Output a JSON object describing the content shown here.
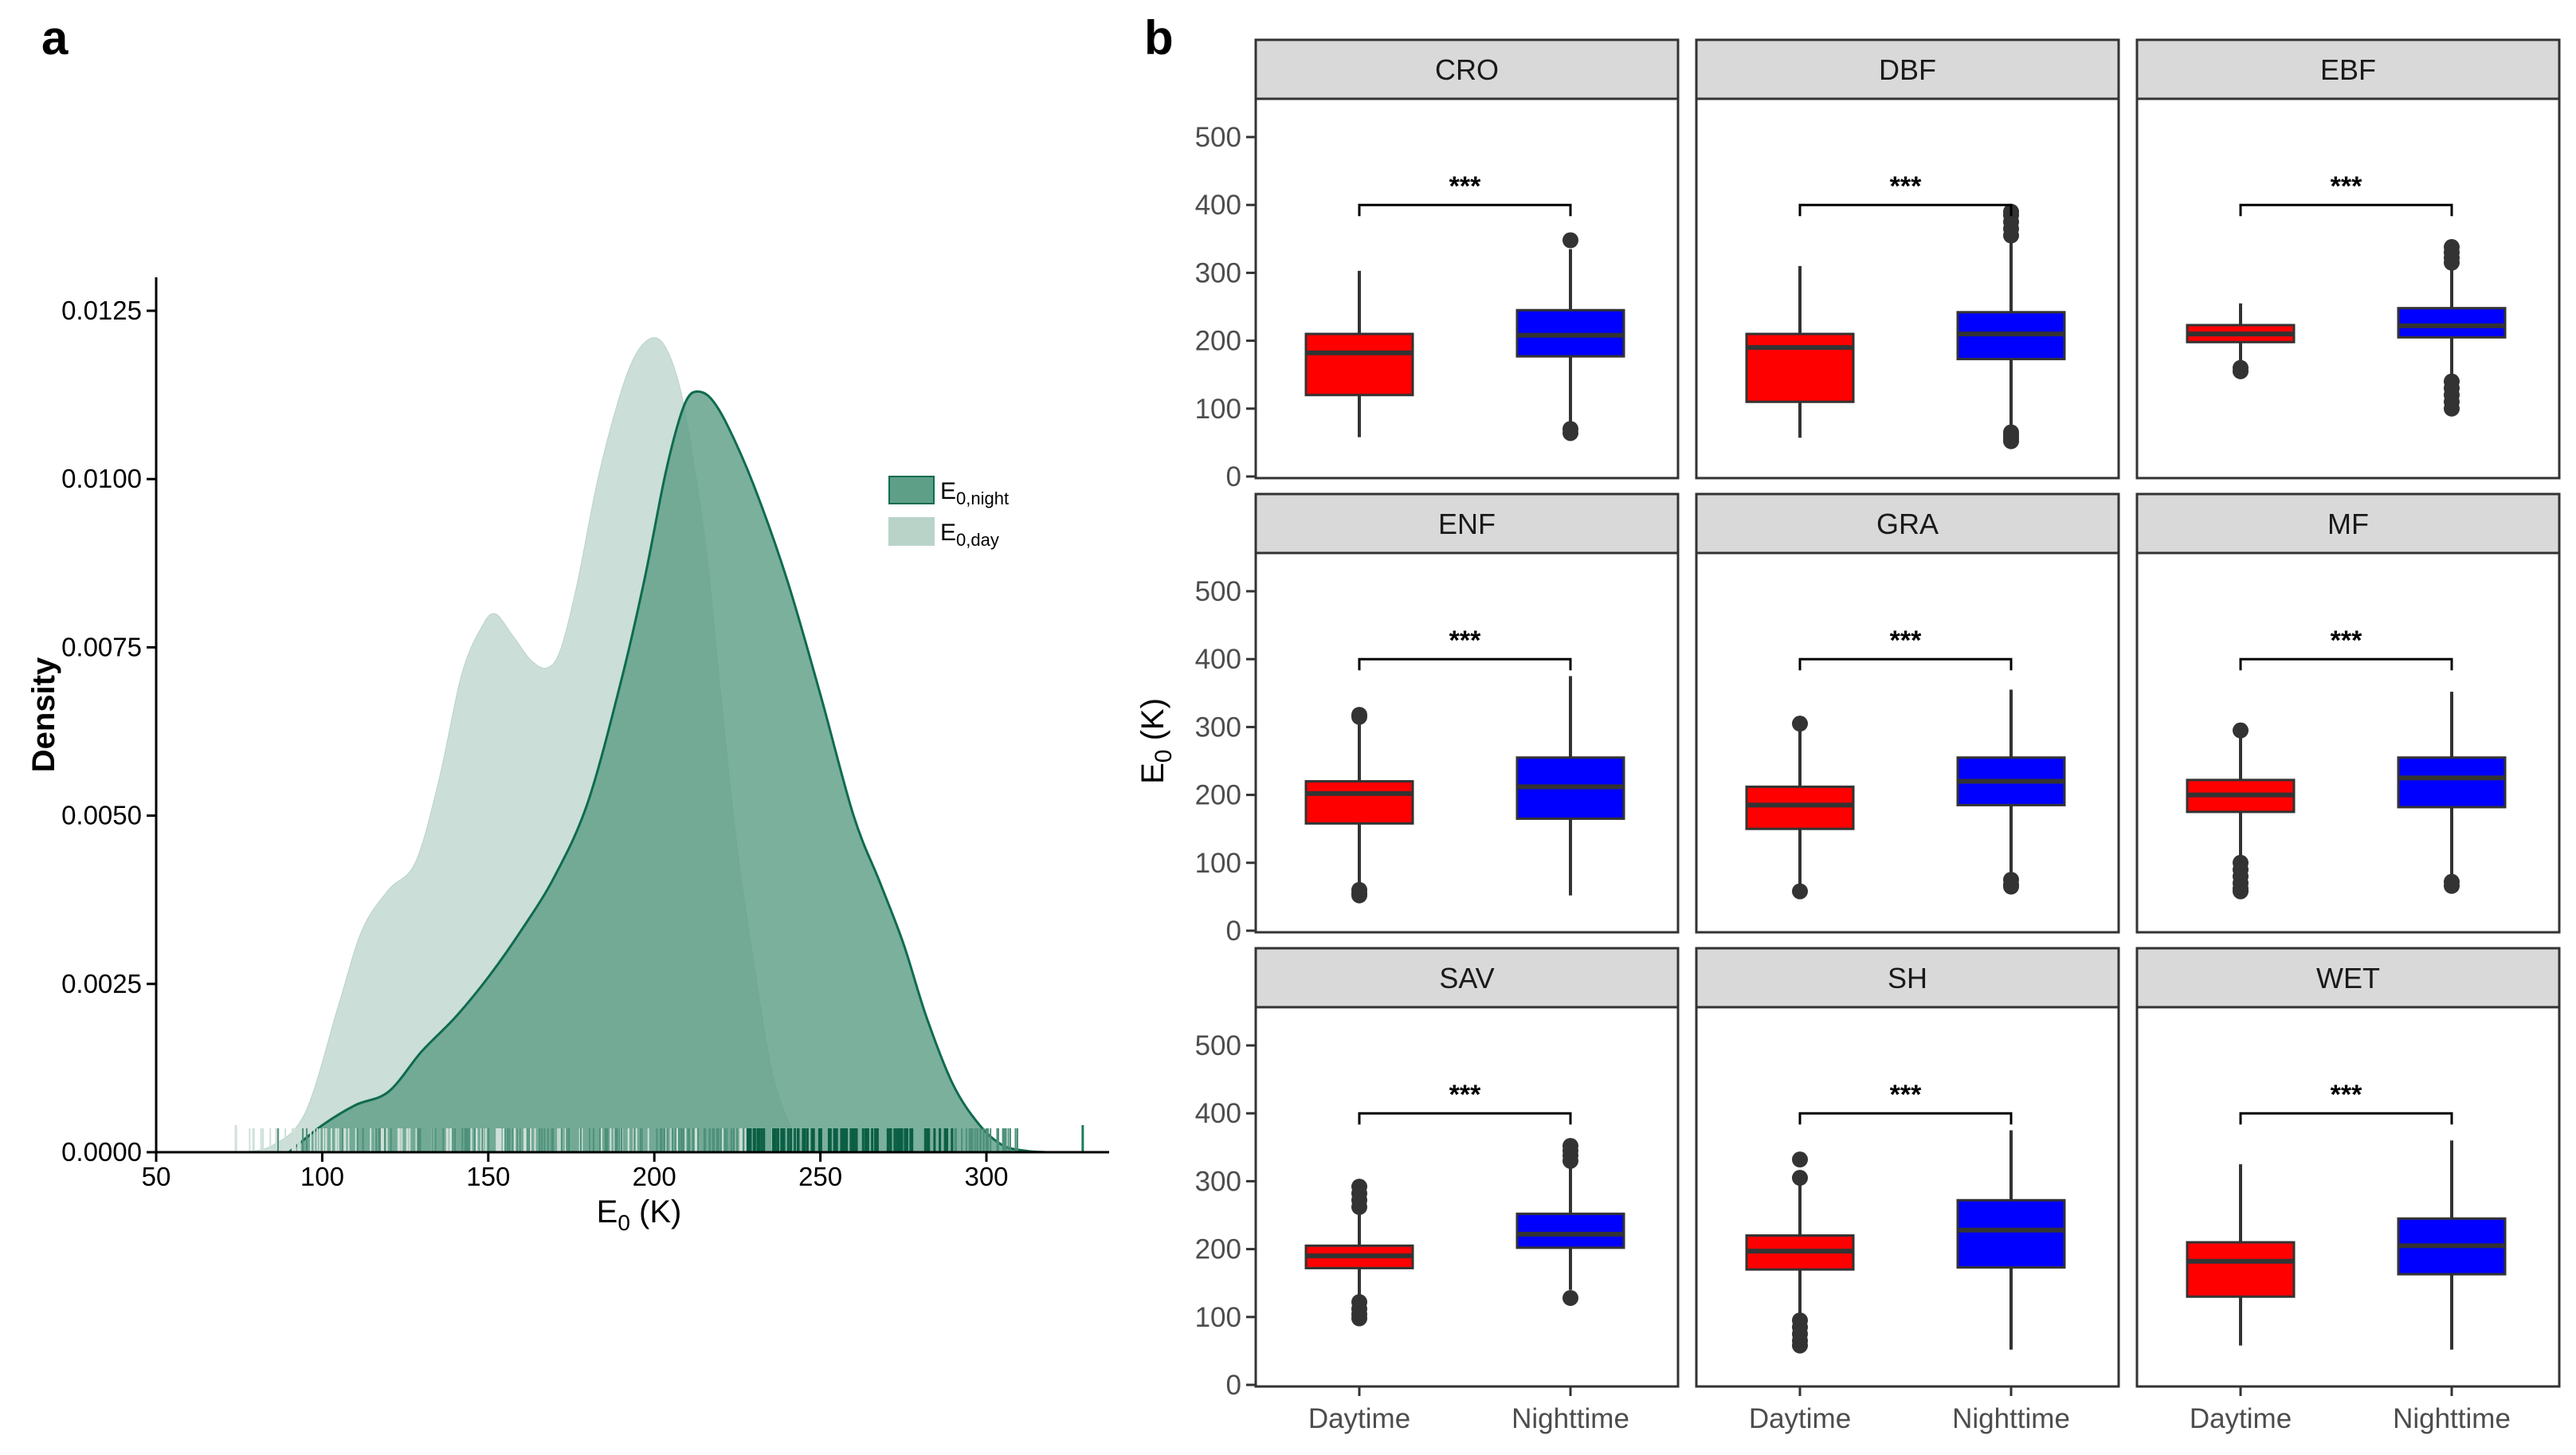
{
  "panel_a": {
    "label": "a",
    "chart_data": {
      "type": "density",
      "xlabel": "E0 (K)",
      "ylabel": "Density",
      "xlim": [
        50,
        335
      ],
      "ylim": [
        0,
        0.0128
      ],
      "x_ticks": [
        50,
        100,
        150,
        200,
        250,
        300
      ],
      "y_ticks": [
        0.0,
        0.0025,
        0.005,
        0.0075,
        0.01,
        0.0125
      ],
      "y_tick_labels": [
        "0.0000",
        "0.0025",
        "0.0050",
        "0.0075",
        "0.0100",
        "0.0125"
      ],
      "legend": [
        {
          "name": "E0,night",
          "main": "E",
          "sub": "0,night",
          "fill": "#5e9f87",
          "stroke": "#0f6b4f"
        },
        {
          "name": "E0,day",
          "main": "E",
          "sub": "0,day",
          "fill": "#b9d3c9",
          "stroke": "#b9d3c9"
        }
      ],
      "series": [
        {
          "name": "E0,day",
          "x": [
            75,
            85,
            95,
            105,
            112,
            120,
            128,
            135,
            142,
            148,
            152,
            157,
            163,
            168,
            172,
            177,
            183,
            190,
            195,
            200,
            204,
            208,
            212,
            216,
            220,
            225,
            230,
            235,
            240,
            245,
            248
          ],
          "y": [
            0,
            0.0001,
            0.0006,
            0.0022,
            0.0033,
            0.0039,
            0.0043,
            0.0055,
            0.0071,
            0.0078,
            0.008,
            0.0077,
            0.0073,
            0.0072,
            0.0075,
            0.0085,
            0.01,
            0.0113,
            0.0119,
            0.0121,
            0.0119,
            0.0113,
            0.0102,
            0.0088,
            0.0068,
            0.0045,
            0.0028,
            0.0013,
            0.0005,
            0.0001,
            0
          ]
        },
        {
          "name": "E0,night",
          "x": [
            90,
            100,
            110,
            120,
            130,
            140,
            150,
            160,
            170,
            180,
            190,
            197,
            203,
            207,
            210,
            213,
            217,
            222,
            230,
            240,
            250,
            260,
            268,
            275,
            282,
            290,
            298,
            305,
            312,
            318
          ],
          "y": [
            0,
            0.0004,
            0.0007,
            0.0009,
            0.0015,
            0.002,
            0.0026,
            0.0033,
            0.0041,
            0.0052,
            0.007,
            0.0085,
            0.01,
            0.0108,
            0.0112,
            0.0113,
            0.0112,
            0.0108,
            0.0099,
            0.0085,
            0.0068,
            0.005,
            0.004,
            0.0031,
            0.002,
            0.001,
            0.0004,
            0.0001,
            2e-05,
            0
          ]
        }
      ]
    }
  },
  "panel_b": {
    "label": "b",
    "chart_data": {
      "type": "boxplot",
      "ylabel_main": "E",
      "ylabel_sub": "0",
      "ylabel_unit": " (K)",
      "ylim": [
        0,
        500
      ],
      "y_ticks": [
        0,
        100,
        200,
        300,
        400,
        500
      ],
      "categories": [
        "Daytime",
        "Nighttime"
      ],
      "colors": {
        "Daytime": "#ff0000",
        "Nighttime": "#0000ff"
      },
      "significance": "***",
      "facets": [
        {
          "name": "CRO",
          "Daytime": {
            "min": 58,
            "q1": 120,
            "median": 182,
            "q3": 210,
            "max": 303,
            "outliers": []
          },
          "Nighttime": {
            "min": 68,
            "q1": 177,
            "median": 208,
            "q3": 245,
            "max": 335,
            "outliers": [
              348,
              70,
              64
            ]
          }
        },
        {
          "name": "DBF",
          "Daytime": {
            "min": 57,
            "q1": 110,
            "median": 190,
            "q3": 210,
            "max": 310,
            "outliers": []
          },
          "Nighttime": {
            "min": 72,
            "q1": 173,
            "median": 210,
            "q3": 242,
            "max": 345,
            "outliers": [
              355,
              365,
              375,
              385,
              390,
              52,
              56,
              60,
              65
            ]
          }
        },
        {
          "name": "EBF",
          "Daytime": {
            "min": 168,
            "q1": 198,
            "median": 210,
            "q3": 223,
            "max": 255,
            "outliers": [
              160,
              155
            ]
          },
          "Nighttime": {
            "min": 150,
            "q1": 205,
            "median": 222,
            "q3": 248,
            "max": 310,
            "outliers": [
              315,
              322,
              330,
              338,
              140,
              130,
              120,
              110,
              100
            ]
          }
        },
        {
          "name": "ENF",
          "Daytime": {
            "min": 70,
            "q1": 158,
            "median": 202,
            "q3": 220,
            "max": 310,
            "outliers": [
              318,
              315,
              60,
              55,
              52
            ]
          },
          "Nighttime": {
            "min": 52,
            "q1": 165,
            "median": 212,
            "q3": 255,
            "max": 375,
            "outliers": []
          }
        },
        {
          "name": "GRA",
          "Daytime": {
            "min": 65,
            "q1": 150,
            "median": 185,
            "q3": 212,
            "max": 300,
            "outliers": [
              305,
              58
            ]
          },
          "Nighttime": {
            "min": 80,
            "q1": 185,
            "median": 220,
            "q3": 255,
            "max": 355,
            "outliers": [
              75,
              68,
              65
            ]
          }
        },
        {
          "name": "MF",
          "Daytime": {
            "min": 110,
            "q1": 175,
            "median": 200,
            "q3": 222,
            "max": 285,
            "outliers": [
              295,
              100,
              90,
              80,
              70,
              62,
              58
            ]
          },
          "Nighttime": {
            "min": 80,
            "q1": 182,
            "median": 225,
            "q3": 255,
            "max": 352,
            "outliers": [
              72,
              66
            ]
          }
        },
        {
          "name": "SAV",
          "Daytime": {
            "min": 130,
            "q1": 172,
            "median": 190,
            "q3": 205,
            "max": 255,
            "outliers": [
              262,
              272,
              282,
              292,
              122,
              112,
              104,
              98
            ]
          },
          "Nighttime": {
            "min": 140,
            "q1": 202,
            "median": 222,
            "q3": 252,
            "max": 320,
            "outliers": [
              330,
              338,
              345,
              352,
              128
            ]
          }
        },
        {
          "name": "SH",
          "Daytime": {
            "min": 100,
            "q1": 170,
            "median": 197,
            "q3": 220,
            "max": 295,
            "outliers": [
              305,
              332,
              95,
              85,
              75,
              65,
              58
            ]
          },
          "Nighttime": {
            "min": 52,
            "q1": 173,
            "median": 228,
            "q3": 272,
            "max": 375,
            "outliers": []
          }
        },
        {
          "name": "WET",
          "Daytime": {
            "min": 58,
            "q1": 130,
            "median": 182,
            "q3": 210,
            "max": 325,
            "outliers": []
          },
          "Nighttime": {
            "min": 52,
            "q1": 163,
            "median": 205,
            "q3": 245,
            "max": 360,
            "outliers": []
          }
        }
      ]
    }
  }
}
